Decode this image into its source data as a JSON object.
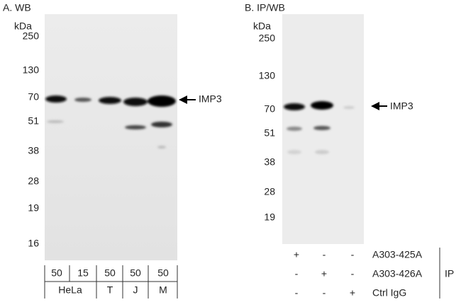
{
  "panels": [
    {
      "label": "A. WB",
      "unit": "kDa",
      "markers": [
        250,
        130,
        70,
        51,
        38,
        28,
        19,
        16
      ],
      "target": "IMP3",
      "loads": [
        50,
        15,
        50,
        50,
        50
      ],
      "cell_lines": [
        "HeLa",
        "T",
        "J",
        "M"
      ]
    },
    {
      "label": "B. IP/WB",
      "unit": "kDa",
      "markers": [
        250,
        130,
        70,
        51,
        38,
        28,
        19
      ],
      "target": "IMP3",
      "antibodies": [
        {
          "name": "A303-425A",
          "signs": [
            "+",
            "-",
            "-"
          ]
        },
        {
          "name": "A303-426A",
          "signs": [
            "-",
            "+",
            "-"
          ]
        },
        {
          "name": "Ctrl IgG",
          "signs": [
            "-",
            "-",
            "+"
          ]
        }
      ],
      "group": "IP"
    }
  ]
}
